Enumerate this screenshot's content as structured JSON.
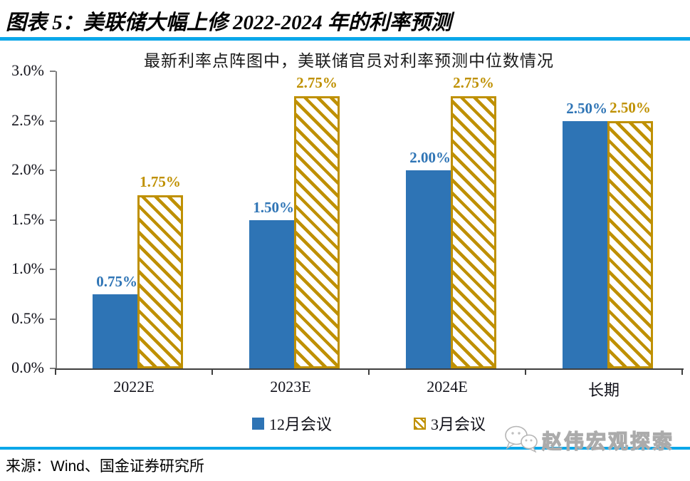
{
  "page": {
    "header": {
      "title": "图表 5：美联储大幅上修 2022-2024 年的利率预测"
    },
    "footer": {
      "source": "来源：Wind、国金证券研究所"
    },
    "watermark": {
      "text": "赵伟宏观探索",
      "icon": "chat-bubbles-icon"
    },
    "accent_colors": {
      "rule_blue": "#0BA7E9",
      "bar_blue": "#2E74B5",
      "bar_gold": "#BF9000"
    }
  },
  "chart_data": {
    "type": "bar",
    "title": "最新利率点阵图中，美联储官员对利率预测中位数情况",
    "categories": [
      "2022E",
      "2023E",
      "2024E",
      "长期"
    ],
    "series": [
      {
        "name": "12月会议",
        "color": "#2E74B5",
        "style": "solid",
        "values": [
          0.75,
          1.5,
          2.0,
          2.5
        ],
        "labels": [
          "0.75%",
          "1.50%",
          "2.00%",
          "2.50%"
        ]
      },
      {
        "name": "3月会议",
        "color": "#BF9000",
        "style": "diagonal-hatch",
        "values": [
          1.75,
          2.75,
          2.75,
          2.5
        ],
        "labels": [
          "1.75%",
          "2.75%",
          "2.75%",
          "2.50%"
        ]
      }
    ],
    "xlabel": "",
    "ylabel": "",
    "ylim": [
      0,
      3
    ],
    "yticks": [
      "0.0%",
      "0.5%",
      "1.0%",
      "1.5%",
      "2.0%",
      "2.5%",
      "3.0%"
    ],
    "grid": false,
    "legend_position": "bottom"
  }
}
